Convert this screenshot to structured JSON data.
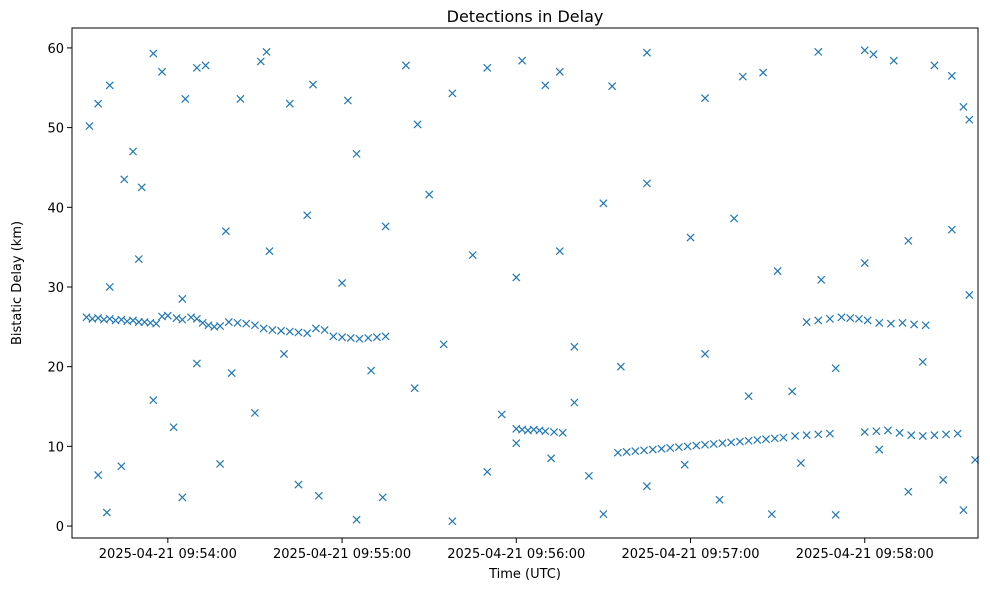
{
  "chart_data": {
    "type": "scatter",
    "title": "Detections in Delay",
    "xlabel": "Time (UTC)",
    "ylabel": "Bistatic Delay (km)",
    "marker": "x",
    "color": "#1f77b4",
    "grid": false,
    "xlim": [
      "2025-04-21 09:53:27",
      "2025-04-21 09:58:39"
    ],
    "ylim": [
      -1.5,
      62.5
    ],
    "x_ticks": [
      "2025-04-21 09:54:00",
      "2025-04-21 09:55:00",
      "2025-04-21 09:56:00",
      "2025-04-21 09:57:00",
      "2025-04-21 09:58:00"
    ],
    "y_ticks": [
      0,
      10,
      20,
      30,
      40,
      50,
      60
    ],
    "series": [
      {
        "points": [
          [
            "2025-04-21 09:53:32",
            26.2
          ],
          [
            "2025-04-21 09:53:34",
            26.0
          ],
          [
            "2025-04-21 09:53:36",
            26.1
          ],
          [
            "2025-04-21 09:53:38",
            25.9
          ],
          [
            "2025-04-21 09:53:40",
            26.0
          ],
          [
            "2025-04-21 09:53:42",
            25.8
          ],
          [
            "2025-04-21 09:53:44",
            25.9
          ],
          [
            "2025-04-21 09:53:46",
            25.7
          ],
          [
            "2025-04-21 09:53:48",
            25.8
          ],
          [
            "2025-04-21 09:53:50",
            25.6
          ],
          [
            "2025-04-21 09:53:52",
            25.6
          ],
          [
            "2025-04-21 09:53:54",
            25.5
          ],
          [
            "2025-04-21 09:53:56",
            25.4
          ],
          [
            "2025-04-21 09:53:58",
            26.3
          ],
          [
            "2025-04-21 09:54:00",
            26.4
          ],
          [
            "2025-04-21 09:54:03",
            26.1
          ],
          [
            "2025-04-21 09:54:05",
            25.9
          ],
          [
            "2025-04-21 09:54:08",
            26.2
          ],
          [
            "2025-04-21 09:54:10",
            26.0
          ],
          [
            "2025-04-21 09:54:12",
            25.5
          ],
          [
            "2025-04-21 09:54:14",
            25.2
          ],
          [
            "2025-04-21 09:54:16",
            25.0
          ],
          [
            "2025-04-21 09:54:18",
            25.1
          ],
          [
            "2025-04-21 09:54:21",
            25.6
          ],
          [
            "2025-04-21 09:54:24",
            25.5
          ],
          [
            "2025-04-21 09:54:27",
            25.4
          ],
          [
            "2025-04-21 09:54:30",
            25.2
          ],
          [
            "2025-04-21 09:54:33",
            24.8
          ],
          [
            "2025-04-21 09:54:36",
            24.6
          ],
          [
            "2025-04-21 09:54:39",
            24.5
          ],
          [
            "2025-04-21 09:54:42",
            24.4
          ],
          [
            "2025-04-21 09:54:45",
            24.3
          ],
          [
            "2025-04-21 09:54:48",
            24.2
          ],
          [
            "2025-04-21 09:54:51",
            24.8
          ],
          [
            "2025-04-21 09:54:54",
            24.6
          ],
          [
            "2025-04-21 09:54:57",
            23.8
          ],
          [
            "2025-04-21 09:55:00",
            23.7
          ],
          [
            "2025-04-21 09:55:03",
            23.6
          ],
          [
            "2025-04-21 09:55:06",
            23.5
          ],
          [
            "2025-04-21 09:55:09",
            23.6
          ],
          [
            "2025-04-21 09:55:12",
            23.7
          ],
          [
            "2025-04-21 09:55:15",
            23.8
          ],
          [
            "2025-04-21 09:56:00",
            12.2
          ],
          [
            "2025-04-21 09:56:02",
            12.1
          ],
          [
            "2025-04-21 09:56:04",
            12.0
          ],
          [
            "2025-04-21 09:56:06",
            12.1
          ],
          [
            "2025-04-21 09:56:08",
            12.0
          ],
          [
            "2025-04-21 09:56:10",
            11.9
          ],
          [
            "2025-04-21 09:56:13",
            11.8
          ],
          [
            "2025-04-21 09:56:16",
            11.7
          ],
          [
            "2025-04-21 09:56:35",
            9.2
          ],
          [
            "2025-04-21 09:56:38",
            9.3
          ],
          [
            "2025-04-21 09:56:41",
            9.4
          ],
          [
            "2025-04-21 09:56:44",
            9.5
          ],
          [
            "2025-04-21 09:56:47",
            9.6
          ],
          [
            "2025-04-21 09:56:50",
            9.7
          ],
          [
            "2025-04-21 09:56:53",
            9.8
          ],
          [
            "2025-04-21 09:56:56",
            9.9
          ],
          [
            "2025-04-21 09:56:59",
            10.0
          ],
          [
            "2025-04-21 09:57:02",
            10.1
          ],
          [
            "2025-04-21 09:57:05",
            10.2
          ],
          [
            "2025-04-21 09:57:08",
            10.3
          ],
          [
            "2025-04-21 09:57:11",
            10.4
          ],
          [
            "2025-04-21 09:57:14",
            10.5
          ],
          [
            "2025-04-21 09:57:17",
            10.6
          ],
          [
            "2025-04-21 09:57:20",
            10.7
          ],
          [
            "2025-04-21 09:57:23",
            10.8
          ],
          [
            "2025-04-21 09:57:26",
            10.9
          ],
          [
            "2025-04-21 09:57:29",
            11.0
          ],
          [
            "2025-04-21 09:57:32",
            11.1
          ],
          [
            "2025-04-21 09:57:36",
            11.3
          ],
          [
            "2025-04-21 09:57:40",
            11.4
          ],
          [
            "2025-04-21 09:57:44",
            11.5
          ],
          [
            "2025-04-21 09:57:48",
            11.6
          ],
          [
            "2025-04-21 09:57:40",
            25.6
          ],
          [
            "2025-04-21 09:57:44",
            25.8
          ],
          [
            "2025-04-21 09:57:48",
            26.0
          ],
          [
            "2025-04-21 09:57:52",
            26.2
          ],
          [
            "2025-04-21 09:57:55",
            26.1
          ],
          [
            "2025-04-21 09:57:58",
            26.0
          ],
          [
            "2025-04-21 09:58:01",
            25.8
          ],
          [
            "2025-04-21 09:58:05",
            25.5
          ],
          [
            "2025-04-21 09:58:09",
            25.4
          ],
          [
            "2025-04-21 09:58:13",
            25.5
          ],
          [
            "2025-04-21 09:58:17",
            25.3
          ],
          [
            "2025-04-21 09:58:21",
            25.2
          ],
          [
            "2025-04-21 09:58:00",
            11.8
          ],
          [
            "2025-04-21 09:58:04",
            11.9
          ],
          [
            "2025-04-21 09:58:08",
            12.0
          ],
          [
            "2025-04-21 09:58:12",
            11.7
          ],
          [
            "2025-04-21 09:58:16",
            11.4
          ],
          [
            "2025-04-21 09:58:20",
            11.3
          ],
          [
            "2025-04-21 09:58:24",
            11.4
          ],
          [
            "2025-04-21 09:58:28",
            11.5
          ],
          [
            "2025-04-21 09:58:32",
            11.6
          ],
          [
            "2025-04-21 09:53:33",
            50.2
          ],
          [
            "2025-04-21 09:53:36",
            53.0
          ],
          [
            "2025-04-21 09:53:40",
            55.3
          ],
          [
            "2025-04-21 09:53:45",
            43.5
          ],
          [
            "2025-04-21 09:53:48",
            47.0
          ],
          [
            "2025-04-21 09:53:51",
            42.5
          ],
          [
            "2025-04-21 09:53:55",
            59.3
          ],
          [
            "2025-04-21 09:53:58",
            57.0
          ],
          [
            "2025-04-21 09:54:06",
            53.6
          ],
          [
            "2025-04-21 09:54:10",
            57.5
          ],
          [
            "2025-04-21 09:54:13",
            57.8
          ],
          [
            "2025-04-21 09:54:25",
            53.6
          ],
          [
            "2025-04-21 09:54:32",
            58.3
          ],
          [
            "2025-04-21 09:54:34",
            59.5
          ],
          [
            "2025-04-21 09:54:42",
            53.0
          ],
          [
            "2025-04-21 09:54:50",
            55.4
          ],
          [
            "2025-04-21 09:55:02",
            53.4
          ],
          [
            "2025-04-21 09:55:05",
            46.7
          ],
          [
            "2025-04-21 09:55:22",
            57.8
          ],
          [
            "2025-04-21 09:55:26",
            50.4
          ],
          [
            "2025-04-21 09:55:38",
            54.3
          ],
          [
            "2025-04-21 09:55:50",
            57.5
          ],
          [
            "2025-04-21 09:56:02",
            58.4
          ],
          [
            "2025-04-21 09:56:10",
            55.3
          ],
          [
            "2025-04-21 09:56:15",
            57.0
          ],
          [
            "2025-04-21 09:56:33",
            55.2
          ],
          [
            "2025-04-21 09:56:45",
            59.4
          ],
          [
            "2025-04-21 09:57:05",
            53.7
          ],
          [
            "2025-04-21 09:57:18",
            56.4
          ],
          [
            "2025-04-21 09:57:25",
            56.9
          ],
          [
            "2025-04-21 09:57:44",
            59.5
          ],
          [
            "2025-04-21 09:58:00",
            59.7
          ],
          [
            "2025-04-21 09:58:03",
            59.2
          ],
          [
            "2025-04-21 09:58:10",
            58.4
          ],
          [
            "2025-04-21 09:58:24",
            57.8
          ],
          [
            "2025-04-21 09:58:30",
            56.5
          ],
          [
            "2025-04-21 09:58:34",
            52.6
          ],
          [
            "2025-04-21 09:58:36",
            51.0
          ],
          [
            "2025-04-21 09:53:40",
            30.0
          ],
          [
            "2025-04-21 09:53:50",
            33.5
          ],
          [
            "2025-04-21 09:54:05",
            28.5
          ],
          [
            "2025-04-21 09:54:20",
            37.0
          ],
          [
            "2025-04-21 09:54:35",
            34.5
          ],
          [
            "2025-04-21 09:54:48",
            39.0
          ],
          [
            "2025-04-21 09:55:00",
            30.5
          ],
          [
            "2025-04-21 09:55:15",
            37.6
          ],
          [
            "2025-04-21 09:55:30",
            41.6
          ],
          [
            "2025-04-21 09:55:45",
            34.0
          ],
          [
            "2025-04-21 09:56:00",
            31.2
          ],
          [
            "2025-04-21 09:56:15",
            34.5
          ],
          [
            "2025-04-21 09:56:30",
            40.5
          ],
          [
            "2025-04-21 09:56:45",
            43.0
          ],
          [
            "2025-04-21 09:57:00",
            36.2
          ],
          [
            "2025-04-21 09:57:15",
            38.6
          ],
          [
            "2025-04-21 09:57:30",
            32.0
          ],
          [
            "2025-04-21 09:57:45",
            30.9
          ],
          [
            "2025-04-21 09:58:00",
            33.0
          ],
          [
            "2025-04-21 09:58:15",
            35.8
          ],
          [
            "2025-04-21 09:58:30",
            37.2
          ],
          [
            "2025-04-21 09:58:36",
            29.0
          ],
          [
            "2025-04-21 09:53:36",
            6.4
          ],
          [
            "2025-04-21 09:53:39",
            1.7
          ],
          [
            "2025-04-21 09:53:44",
            7.5
          ],
          [
            "2025-04-21 09:54:02",
            12.4
          ],
          [
            "2025-04-21 09:54:05",
            3.6
          ],
          [
            "2025-04-21 09:54:18",
            7.8
          ],
          [
            "2025-04-21 09:54:30",
            14.2
          ],
          [
            "2025-04-21 09:54:45",
            5.2
          ],
          [
            "2025-04-21 09:54:52",
            3.8
          ],
          [
            "2025-04-21 09:55:05",
            0.8
          ],
          [
            "2025-04-21 09:55:14",
            3.6
          ],
          [
            "2025-04-21 09:55:25",
            17.3
          ],
          [
            "2025-04-21 09:55:38",
            0.6
          ],
          [
            "2025-04-21 09:55:50",
            6.8
          ],
          [
            "2025-04-21 09:56:00",
            10.4
          ],
          [
            "2025-04-21 09:56:12",
            8.5
          ],
          [
            "2025-04-21 09:56:20",
            15.5
          ],
          [
            "2025-04-21 09:56:25",
            6.3
          ],
          [
            "2025-04-21 09:56:30",
            1.5
          ],
          [
            "2025-04-21 09:56:45",
            5.0
          ],
          [
            "2025-04-21 09:56:58",
            7.7
          ],
          [
            "2025-04-21 09:57:10",
            3.3
          ],
          [
            "2025-04-21 09:57:20",
            16.3
          ],
          [
            "2025-04-21 09:57:28",
            1.5
          ],
          [
            "2025-04-21 09:57:38",
            7.9
          ],
          [
            "2025-04-21 09:57:50",
            1.4
          ],
          [
            "2025-04-21 09:58:05",
            9.6
          ],
          [
            "2025-04-21 09:58:15",
            4.3
          ],
          [
            "2025-04-21 09:58:27",
            5.8
          ],
          [
            "2025-04-21 09:58:34",
            2.0
          ],
          [
            "2025-04-21 09:58:38",
            8.3
          ],
          [
            "2025-04-21 09:53:55",
            15.8
          ],
          [
            "2025-04-21 09:54:10",
            20.4
          ],
          [
            "2025-04-21 09:54:22",
            19.2
          ],
          [
            "2025-04-21 09:54:40",
            21.6
          ],
          [
            "2025-04-21 09:55:10",
            19.5
          ],
          [
            "2025-04-21 09:55:35",
            22.8
          ],
          [
            "2025-04-21 09:55:55",
            14.0
          ],
          [
            "2025-04-21 09:56:20",
            22.5
          ],
          [
            "2025-04-21 09:56:36",
            20.0
          ],
          [
            "2025-04-21 09:57:05",
            21.6
          ],
          [
            "2025-04-21 09:57:35",
            16.9
          ],
          [
            "2025-04-21 09:57:50",
            19.8
          ],
          [
            "2025-04-21 09:58:20",
            20.6
          ]
        ]
      }
    ]
  }
}
